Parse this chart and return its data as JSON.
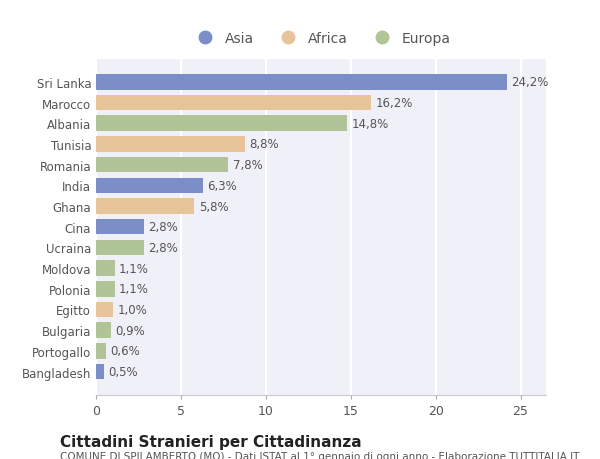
{
  "countries": [
    "Sri Lanka",
    "Marocco",
    "Albania",
    "Tunisia",
    "Romania",
    "India",
    "Ghana",
    "Cina",
    "Ucraina",
    "Moldova",
    "Polonia",
    "Egitto",
    "Bulgaria",
    "Portogallo",
    "Bangladesh"
  ],
  "values": [
    24.2,
    16.2,
    14.8,
    8.8,
    7.8,
    6.3,
    5.8,
    2.8,
    2.8,
    1.1,
    1.1,
    1.0,
    0.9,
    0.6,
    0.5
  ],
  "labels": [
    "24,2%",
    "16,2%",
    "14,8%",
    "8,8%",
    "7,8%",
    "6,3%",
    "5,8%",
    "2,8%",
    "2,8%",
    "1,1%",
    "1,1%",
    "1,0%",
    "0,9%",
    "0,6%",
    "0,5%"
  ],
  "continents": [
    "Asia",
    "Africa",
    "Europa",
    "Africa",
    "Europa",
    "Asia",
    "Africa",
    "Asia",
    "Europa",
    "Europa",
    "Europa",
    "Africa",
    "Europa",
    "Europa",
    "Asia"
  ],
  "colors": {
    "Asia": "#7b8ec8",
    "Africa": "#e8c49a",
    "Europa": "#b0c498"
  },
  "title": "Cittadini Stranieri per Cittadinanza",
  "subtitle": "COMUNE DI SPILAMBERTO (MO) - Dati ISTAT al 1° gennaio di ogni anno - Elaborazione TUTTITALIA.IT",
  "xlim": [
    0,
    26.5
  ],
  "xticks": [
    0,
    5,
    10,
    15,
    20,
    25
  ],
  "background_color": "#ffffff",
  "plot_bg_color": "#f0f0f8",
  "grid_color": "#ffffff",
  "bar_height": 0.75,
  "label_fontsize": 8.5,
  "ytick_fontsize": 8.5,
  "xtick_fontsize": 9,
  "title_fontsize": 11,
  "subtitle_fontsize": 7.5
}
